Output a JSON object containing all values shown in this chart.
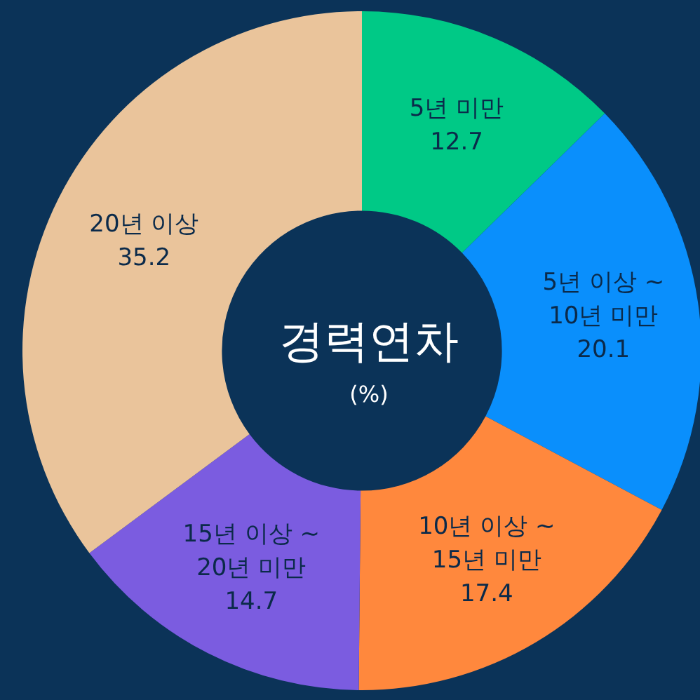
{
  "chart_data": {
    "type": "donut",
    "title": "경력연차",
    "subtitle": "(%)",
    "categories": [
      "5년 미만",
      "5년 이상 ~ 10년 미만",
      "10년 이상 ~ 15년 미만",
      "15년 이상 ~ 20년 미만",
      "20년 이상"
    ],
    "values": [
      12.7,
      20.1,
      17.4,
      14.7,
      35.2
    ],
    "colors": [
      "#00c986",
      "#0a8ffc",
      "#ff883d",
      "#7b5ce0",
      "#eac49b"
    ],
    "data_labels": true,
    "legend": false
  }
}
